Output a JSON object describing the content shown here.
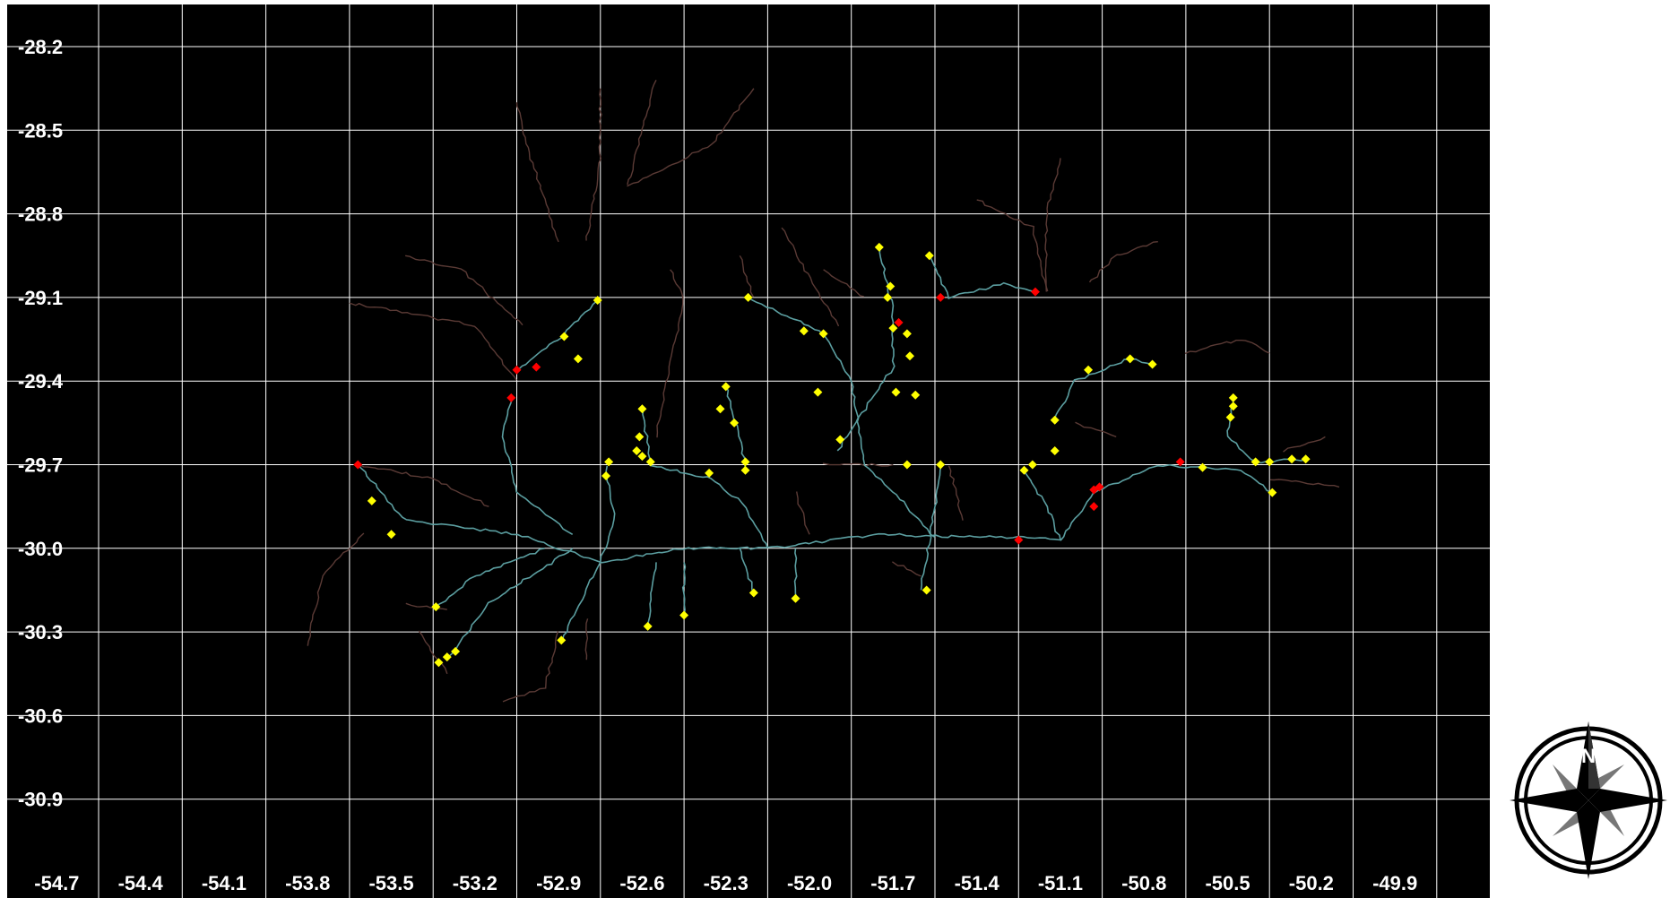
{
  "map": {
    "colors": {
      "background": "#000000",
      "grid": "#ffffff",
      "tick_text": "#ffffff",
      "river_main": "#5b9ea0",
      "river_trib": "#5a3a35",
      "station_yellow": "#ffff00",
      "station_red": "#ff0000",
      "page": "#ffffff"
    },
    "x_ticks": [
      "-54.7",
      "-54.4",
      "-54.1",
      "-53.8",
      "-53.5",
      "-53.2",
      "-52.9",
      "-52.6",
      "-52.3",
      "-52.0",
      "-51.7",
      "-51.4",
      "-51.1",
      "-50.8",
      "-50.5",
      "-50.2",
      "-49.9"
    ],
    "y_ticks": [
      "-28.2",
      "-28.5",
      "-28.8",
      "-29.1",
      "-29.4",
      "-29.7",
      "-30.0",
      "-30.3",
      "-30.6",
      "-30.9"
    ],
    "yellow_stations": [
      [
        -52.91,
        -29.11
      ],
      [
        -53.03,
        -29.24
      ],
      [
        -52.98,
        -29.32
      ],
      [
        -52.37,
        -29.1
      ],
      [
        -52.17,
        -29.22
      ],
      [
        -52.1,
        -29.23
      ],
      [
        -51.9,
        -28.92
      ],
      [
        -51.72,
        -28.95
      ],
      [
        -51.86,
        -29.06
      ],
      [
        -51.87,
        -29.1
      ],
      [
        -51.85,
        -29.21
      ],
      [
        -51.8,
        -29.23
      ],
      [
        -51.79,
        -29.31
      ],
      [
        -51.84,
        -29.44
      ],
      [
        -51.77,
        -29.45
      ],
      [
        -51.0,
        -29.32
      ],
      [
        -50.92,
        -29.34
      ],
      [
        -51.15,
        -29.36
      ],
      [
        -51.27,
        -29.54
      ],
      [
        -51.27,
        -29.65
      ],
      [
        -51.35,
        -29.7
      ],
      [
        -51.38,
        -29.72
      ],
      [
        -50.74,
        -29.71
      ],
      [
        -50.63,
        -29.46
      ],
      [
        -50.63,
        -29.49
      ],
      [
        -50.64,
        -29.53
      ],
      [
        -50.55,
        -29.69
      ],
      [
        -50.5,
        -29.69
      ],
      [
        -50.42,
        -29.68
      ],
      [
        -50.37,
        -29.68
      ],
      [
        -50.49,
        -29.8
      ],
      [
        -51.68,
        -29.7
      ],
      [
        -51.8,
        -29.7
      ],
      [
        -52.04,
        -29.61
      ],
      [
        -52.12,
        -29.44
      ],
      [
        -52.45,
        -29.42
      ],
      [
        -52.47,
        -29.5
      ],
      [
        -52.42,
        -29.55
      ],
      [
        -52.38,
        -29.69
      ],
      [
        -52.38,
        -29.72
      ],
      [
        -52.51,
        -29.73
      ],
      [
        -52.75,
        -29.5
      ],
      [
        -52.76,
        -29.6
      ],
      [
        -52.77,
        -29.65
      ],
      [
        -52.75,
        -29.67
      ],
      [
        -52.72,
        -29.69
      ],
      [
        -52.87,
        -29.69
      ],
      [
        -52.88,
        -29.74
      ],
      [
        -53.72,
        -29.83
      ],
      [
        -53.65,
        -29.95
      ],
      [
        -53.49,
        -30.21
      ],
      [
        -53.48,
        -30.41
      ],
      [
        -53.45,
        -30.39
      ],
      [
        -53.42,
        -30.37
      ],
      [
        -53.04,
        -30.33
      ],
      [
        -52.73,
        -30.28
      ],
      [
        -52.6,
        -30.24
      ],
      [
        -52.35,
        -30.16
      ],
      [
        -52.2,
        -30.18
      ],
      [
        -51.73,
        -30.15
      ]
    ],
    "red_stations": [
      [
        -53.77,
        -29.7
      ],
      [
        -53.22,
        -29.46
      ],
      [
        -53.2,
        -29.36
      ],
      [
        -53.13,
        -29.35
      ],
      [
        -51.83,
        -29.19
      ],
      [
        -51.68,
        -29.1
      ],
      [
        -51.34,
        -29.08
      ],
      [
        -50.82,
        -29.69
      ],
      [
        -51.13,
        -29.79
      ],
      [
        -51.11,
        -29.78
      ],
      [
        -51.13,
        -29.85
      ],
      [
        -51.4,
        -29.97
      ]
    ],
    "compass": {
      "label": "N"
    }
  }
}
